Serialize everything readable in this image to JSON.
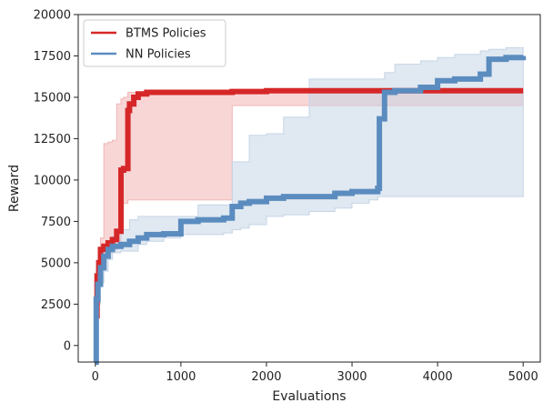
{
  "chart_data": {
    "type": "line",
    "title": "",
    "xlabel": "Evaluations",
    "ylabel": "Reward",
    "xlim": [
      -200,
      5200
    ],
    "ylim": [
      -1000,
      20000
    ],
    "x_ticks": [
      0,
      1000,
      2000,
      3000,
      4000,
      5000
    ],
    "x_tick_labels": [
      "0",
      "1000",
      "2000",
      "3000",
      "4000",
      "5000"
    ],
    "y_ticks": [
      0,
      2500,
      5000,
      7500,
      10000,
      12500,
      15000,
      17500,
      20000
    ],
    "y_tick_labels": [
      "0",
      "2500",
      "5000",
      "7500",
      "10000",
      "12500",
      "15000",
      "17500",
      "20000"
    ],
    "grid": false,
    "legend_position": "top-left",
    "series": [
      {
        "name": "BTMS Policies",
        "color": "#d62728",
        "band_color": "#f2b5b5",
        "x": [
          0,
          20,
          40,
          60,
          100,
          150,
          200,
          250,
          300,
          330,
          380,
          400,
          450,
          500,
          600,
          800,
          1200,
          1600,
          2000,
          2500,
          3000,
          3500,
          4000,
          4500,
          5000
        ],
        "y": [
          1800,
          4200,
          5000,
          5800,
          6000,
          6200,
          6400,
          6900,
          10600,
          10700,
          14200,
          14600,
          15000,
          15200,
          15300,
          15300,
          15300,
          15350,
          15400,
          15400,
          15400,
          15400,
          15400,
          15400,
          15400
        ],
        "lower": [
          1200,
          3500,
          4400,
          5000,
          5400,
          5600,
          5800,
          6000,
          8400,
          8600,
          8800,
          8800,
          8800,
          8800,
          8800,
          8800,
          8800,
          14500,
          14500,
          14500,
          14500,
          14500,
          14500,
          14500,
          14500
        ],
        "upper": [
          2600,
          5000,
          5600,
          6500,
          12200,
          12300,
          12400,
          14600,
          14900,
          15000,
          15300,
          15300,
          15300,
          15300,
          15300,
          15300,
          15300,
          15300,
          15300,
          15300,
          15300,
          15300,
          15300,
          15300,
          15300
        ]
      },
      {
        "name": "NN Policies",
        "color": "#5b8cbf",
        "band_color": "#c6d5e6",
        "x": [
          0,
          10,
          30,
          60,
          100,
          150,
          200,
          300,
          400,
          500,
          600,
          700,
          800,
          900,
          1000,
          1200,
          1500,
          1600,
          1700,
          1800,
          2000,
          2200,
          2500,
          2800,
          3000,
          3200,
          3300,
          3320,
          3380,
          3500,
          3800,
          4000,
          4200,
          4500,
          4600,
          4800,
          5000
        ],
        "y": [
          -1000,
          2800,
          3700,
          4700,
          5400,
          5800,
          6000,
          6100,
          6300,
          6500,
          6700,
          6700,
          6750,
          6750,
          7500,
          7600,
          7700,
          8400,
          8600,
          8700,
          8900,
          9000,
          9000,
          9200,
          9300,
          9300,
          9500,
          13700,
          15300,
          15400,
          15600,
          16000,
          16100,
          16400,
          17300,
          17400,
          17500
        ],
        "lower": [
          -1000,
          1200,
          2500,
          3800,
          4500,
          5200,
          5600,
          5700,
          5700,
          6100,
          6300,
          6300,
          6500,
          6500,
          6700,
          6700,
          6800,
          7000,
          7100,
          7300,
          7800,
          7900,
          8100,
          8300,
          8600,
          8800,
          9000,
          9000,
          9000,
          9000,
          9000,
          9000,
          9000,
          9000,
          9000,
          9000,
          9000
        ],
        "upper": [
          3200,
          4600,
          5200,
          5600,
          6000,
          6300,
          6600,
          7000,
          7600,
          7800,
          7800,
          7800,
          7800,
          7800,
          7800,
          8500,
          8500,
          11100,
          11100,
          12700,
          12800,
          13800,
          16100,
          16100,
          16100,
          16100,
          16100,
          16100,
          16500,
          17000,
          17200,
          17400,
          17600,
          17800,
          17900,
          18000,
          18000
        ]
      }
    ]
  }
}
